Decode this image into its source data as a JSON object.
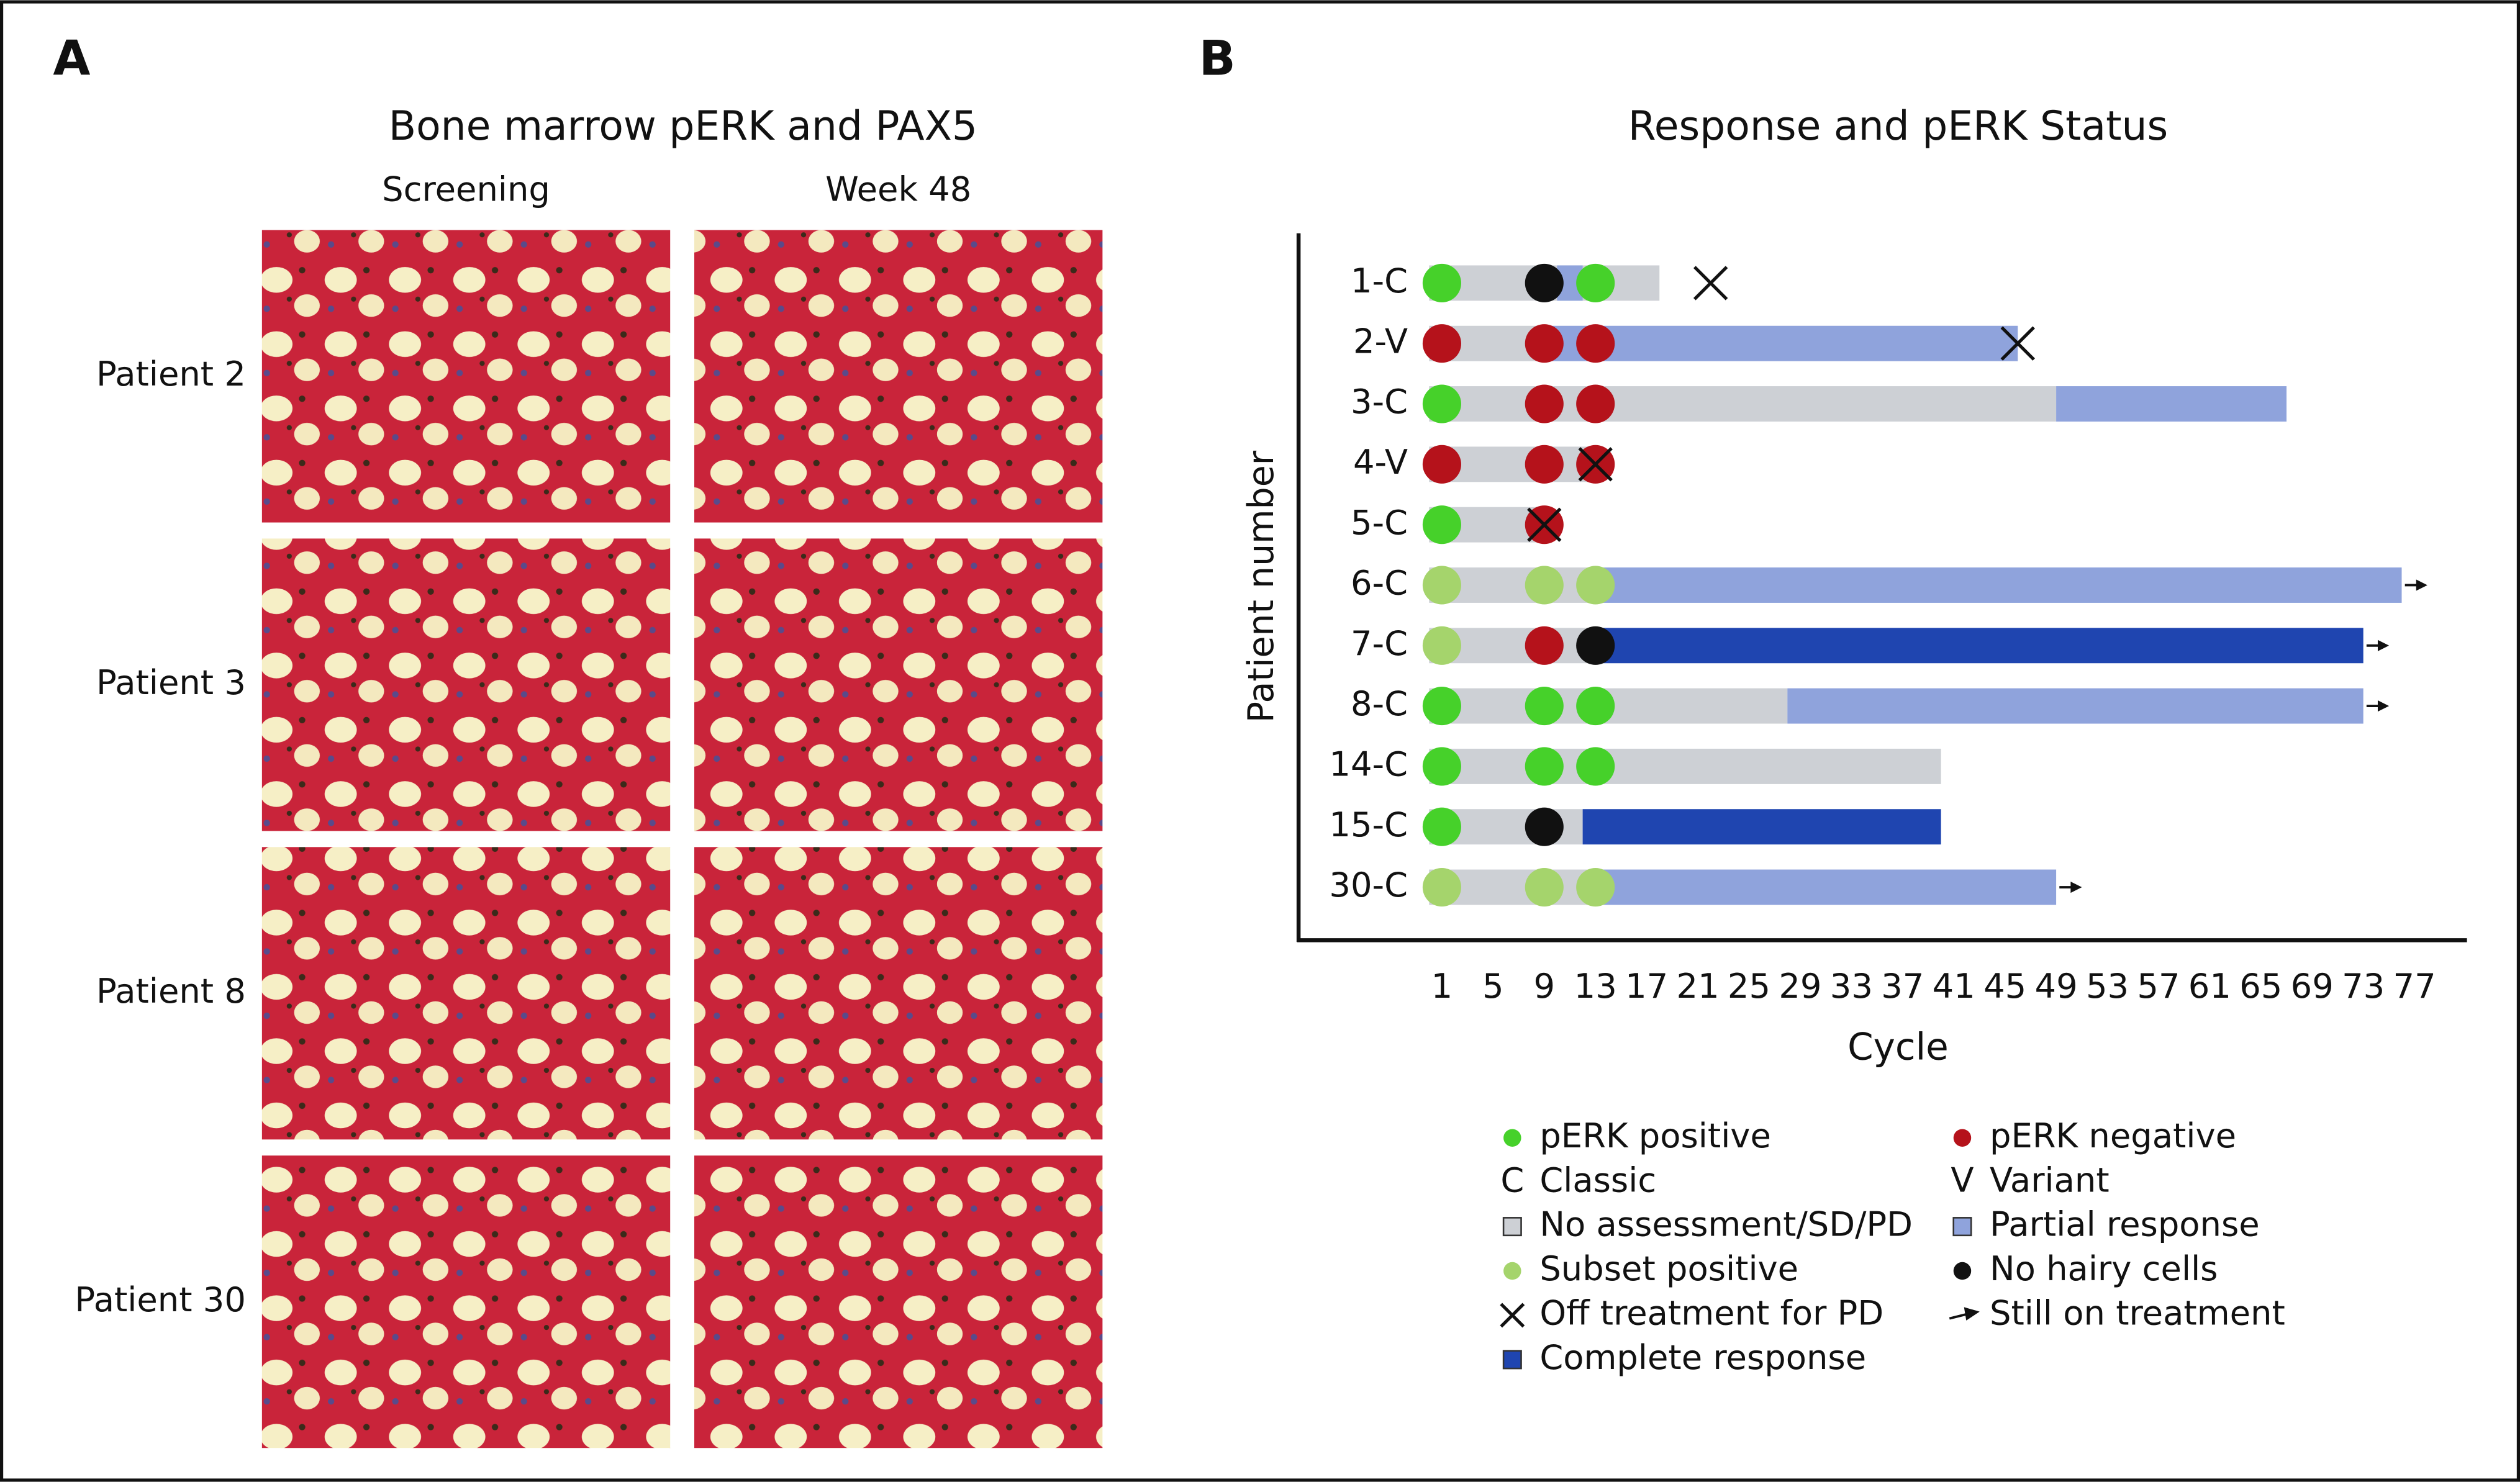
{
  "panel_a": {
    "label": "A",
    "title": "Bone marrow pERK and PAX5",
    "columns": [
      "Screening",
      "Week 48"
    ],
    "rows": [
      "Patient 2",
      "Patient 3",
      "Patient 8",
      "Patient 30"
    ]
  },
  "chart_data": {
    "type": "swimmer",
    "panel_label": "B",
    "title": "Response and pERK Status",
    "x_label": "Cycle",
    "y_label": "Patient number",
    "xlim": [
      -10.2,
      81.1
    ],
    "xticks": [
      1,
      5,
      9,
      13,
      17,
      21,
      25,
      29,
      33,
      37,
      41,
      45,
      49,
      53,
      57,
      61,
      65,
      69,
      73,
      77
    ],
    "patients": [
      {
        "name": "1-C",
        "segments": [
          {
            "start": 0,
            "end": 18,
            "color": "#cdd0d5"
          },
          {
            "start": 10,
            "end": 12,
            "color": "#8fa3dc"
          }
        ],
        "markers": [
          {
            "cycle": 1,
            "color": "#46d12a"
          },
          {
            "cycle": 9,
            "color": "#111111"
          },
          {
            "cycle": 13,
            "color": "#46d12a"
          }
        ],
        "off_treatment": 22,
        "still_on": false
      },
      {
        "name": "2-V",
        "segments": [
          {
            "start": 0,
            "end": 9,
            "color": "#cdd0d5"
          },
          {
            "start": 9,
            "end": 46,
            "color": "#8fa3dc"
          }
        ],
        "markers": [
          {
            "cycle": 1,
            "color": "#b5121b"
          },
          {
            "cycle": 9,
            "color": "#b5121b"
          },
          {
            "cycle": 13,
            "color": "#b5121b"
          }
        ],
        "off_treatment": 46,
        "still_on": false
      },
      {
        "name": "3-C",
        "segments": [
          {
            "start": 0,
            "end": 49,
            "color": "#cdd0d5"
          },
          {
            "start": 49,
            "end": 67,
            "color": "#8fa3dc"
          }
        ],
        "markers": [
          {
            "cycle": 1,
            "color": "#46d12a"
          },
          {
            "cycle": 9,
            "color": "#b5121b"
          },
          {
            "cycle": 13,
            "color": "#b5121b"
          }
        ],
        "off_treatment": null,
        "still_on": false
      },
      {
        "name": "4-V",
        "segments": [
          {
            "start": 0,
            "end": 13,
            "color": "#cdd0d5"
          }
        ],
        "markers": [
          {
            "cycle": 1,
            "color": "#b5121b"
          },
          {
            "cycle": 9,
            "color": "#b5121b"
          },
          {
            "cycle": 13,
            "color": "#b5121b"
          }
        ],
        "off_treatment": 13,
        "still_on": false
      },
      {
        "name": "5-C",
        "segments": [
          {
            "start": 0,
            "end": 9,
            "color": "#cdd0d5"
          }
        ],
        "markers": [
          {
            "cycle": 1,
            "color": "#46d12a"
          },
          {
            "cycle": 9,
            "color": "#b5121b"
          }
        ],
        "off_treatment": 9,
        "still_on": false
      },
      {
        "name": "6-C",
        "segments": [
          {
            "start": 0,
            "end": 13,
            "color": "#cdd0d5"
          },
          {
            "start": 13,
            "end": 76,
            "color": "#8fa3dc"
          }
        ],
        "markers": [
          {
            "cycle": 1,
            "color": "#a5d46c"
          },
          {
            "cycle": 9,
            "color": "#a5d46c"
          },
          {
            "cycle": 13,
            "color": "#a5d46c"
          }
        ],
        "off_treatment": null,
        "still_on": true
      },
      {
        "name": "7-C",
        "segments": [
          {
            "start": 0,
            "end": 13,
            "color": "#cdd0d5"
          },
          {
            "start": 13,
            "end": 73,
            "color": "#1f45b0"
          }
        ],
        "markers": [
          {
            "cycle": 1,
            "color": "#a5d46c"
          },
          {
            "cycle": 9,
            "color": "#b5121b"
          },
          {
            "cycle": 13,
            "color": "#111111"
          }
        ],
        "off_treatment": null,
        "still_on": true
      },
      {
        "name": "8-C",
        "segments": [
          {
            "start": 0,
            "end": 28,
            "color": "#cdd0d5"
          },
          {
            "start": 28,
            "end": 73,
            "color": "#8fa3dc"
          }
        ],
        "markers": [
          {
            "cycle": 1,
            "color": "#46d12a"
          },
          {
            "cycle": 9,
            "color": "#46d12a"
          },
          {
            "cycle": 13,
            "color": "#46d12a"
          }
        ],
        "off_treatment": null,
        "still_on": true
      },
      {
        "name": "14-C",
        "segments": [
          {
            "start": 0,
            "end": 40,
            "color": "#cdd0d5"
          }
        ],
        "markers": [
          {
            "cycle": 1,
            "color": "#46d12a"
          },
          {
            "cycle": 9,
            "color": "#46d12a"
          },
          {
            "cycle": 13,
            "color": "#46d12a"
          }
        ],
        "off_treatment": null,
        "still_on": false
      },
      {
        "name": "15-C",
        "segments": [
          {
            "start": 0,
            "end": 12,
            "color": "#cdd0d5"
          },
          {
            "start": 12,
            "end": 40,
            "color": "#1f45b0"
          }
        ],
        "markers": [
          {
            "cycle": 1,
            "color": "#46d12a"
          },
          {
            "cycle": 9,
            "color": "#111111"
          }
        ],
        "off_treatment": null,
        "still_on": false
      },
      {
        "name": "30-C",
        "segments": [
          {
            "start": 0,
            "end": 13,
            "color": "#cdd0d5"
          },
          {
            "start": 13,
            "end": 49,
            "color": "#8fa3dc"
          }
        ],
        "markers": [
          {
            "cycle": 1,
            "color": "#a5d46c"
          },
          {
            "cycle": 9,
            "color": "#a5d46c"
          },
          {
            "cycle": 13,
            "color": "#a5d46c"
          }
        ],
        "off_treatment": null,
        "still_on": true
      }
    ],
    "legend": [
      {
        "label": "pERK positive",
        "marker": "circle",
        "color": "#46d12a"
      },
      {
        "label": "pERK negative",
        "marker": "circle",
        "color": "#b5121b"
      },
      {
        "label": "Classic",
        "key": "C"
      },
      {
        "label": "Variant",
        "key": "V"
      },
      {
        "label": "No assessment/SD/PD",
        "marker": "square",
        "color": "#cdd0d5"
      },
      {
        "label": "Partial response",
        "marker": "square",
        "color": "#8fa3dc"
      },
      {
        "label": "Subset positive",
        "marker": "circle",
        "color": "#a5d46c"
      },
      {
        "label": "No hairy cells",
        "marker": "circle",
        "color": "#111111"
      },
      {
        "label": "Off treatment for PD",
        "marker": "cross"
      },
      {
        "label": "Still on treatment",
        "marker": "arrow"
      },
      {
        "label": "Complete response",
        "marker": "square",
        "color": "#1f45b0"
      }
    ]
  }
}
